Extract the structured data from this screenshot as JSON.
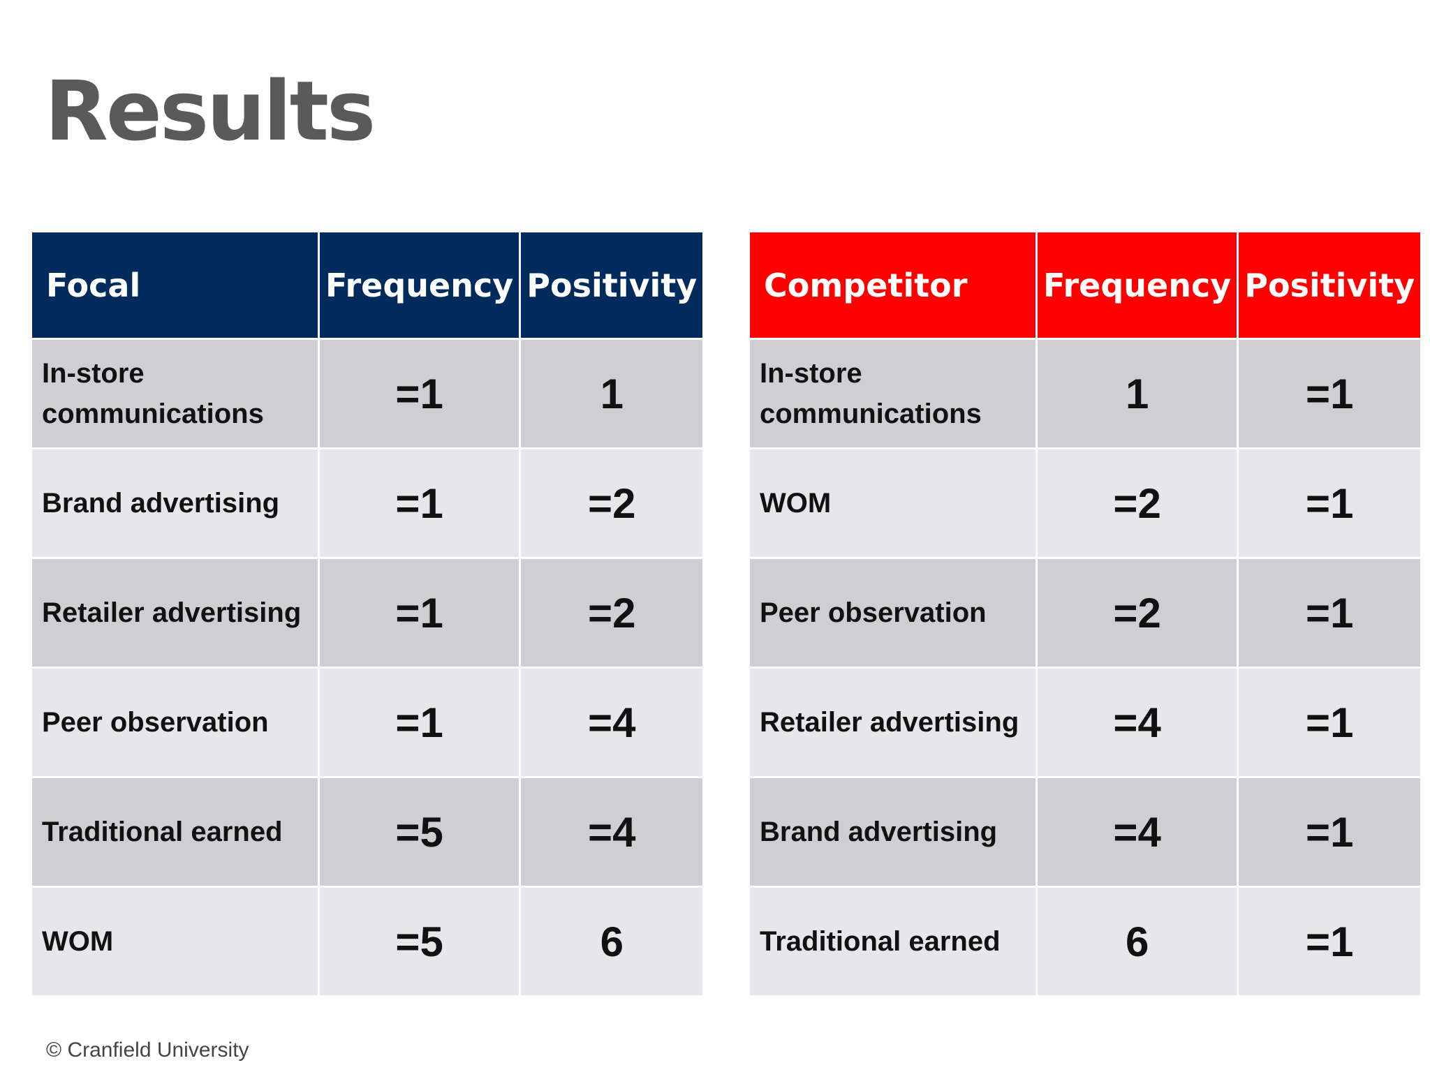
{
  "slide": {
    "title": "Results",
    "footer": "© Cranfield University"
  },
  "colors": {
    "focal_header": "#002b5c",
    "competitor_header": "#fe0000",
    "row_dark": "#cfced3",
    "row_light": "#e7e6eb"
  },
  "focal_table": {
    "headers": [
      "Focal",
      "Frequency",
      "Positivity"
    ],
    "rows": [
      [
        "In-store communications",
        "=1",
        "1"
      ],
      [
        "Brand advertising",
        "=1",
        "=2"
      ],
      [
        "Retailer advertising",
        "=1",
        "=2"
      ],
      [
        "Peer observation",
        "=1",
        "=4"
      ],
      [
        "Traditional earned",
        "=5",
        "=4"
      ],
      [
        "WOM",
        "=5",
        "6"
      ]
    ]
  },
  "competitor_table": {
    "headers": [
      "Competitor",
      "Frequency",
      "Positivity"
    ],
    "rows": [
      [
        "In-store communications",
        "1",
        "=1"
      ],
      [
        "WOM",
        "=2",
        "=1"
      ],
      [
        "Peer observation",
        "=2",
        "=1"
      ],
      [
        "Retailer advertising",
        "=4",
        "=1"
      ],
      [
        "Brand advertising",
        "=4",
        "=1"
      ],
      [
        "Traditional earned",
        "6",
        "=1"
      ]
    ]
  }
}
